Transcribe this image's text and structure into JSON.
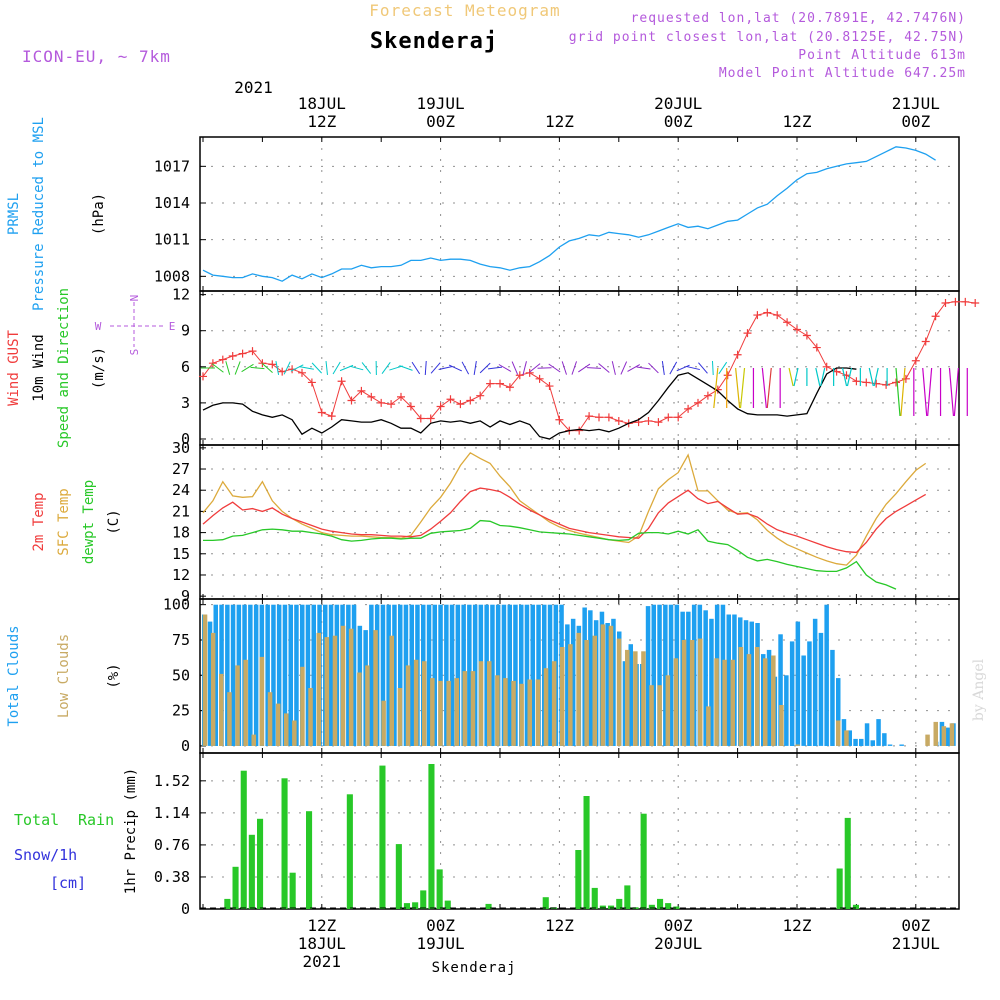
{
  "header": {
    "product": "Forecast Meteogram",
    "location": "Skenderaj",
    "model": "ICON-EU, ~ 7km",
    "requested": "requested lon,lat (20.7891E, 42.7476N)",
    "gridpoint": "grid point closest lon,lat (20.8125E, 42.75N)",
    "point_alt": "Point Altitude 613m",
    "model_alt": "Model Point Altitude 647.25m",
    "footer_location": "Skenderaj",
    "watermark": "by Angel"
  },
  "time_axis": {
    "top_year": "2021",
    "top_labels": [
      {
        "hour": 12,
        "lines": [
          "18JUL",
          "12Z"
        ]
      },
      {
        "hour": 24,
        "lines": [
          "19JUL",
          "00Z"
        ]
      },
      {
        "hour": 36,
        "lines": [
          "",
          "12Z"
        ]
      },
      {
        "hour": 48,
        "lines": [
          "20JUL",
          "00Z"
        ]
      },
      {
        "hour": 60,
        "lines": [
          "",
          "12Z"
        ]
      },
      {
        "hour": 72,
        "lines": [
          "21JUL",
          "00Z"
        ]
      }
    ],
    "bottom_labels": [
      {
        "hour": 12,
        "lines": [
          "12Z",
          "18JUL",
          "2021"
        ]
      },
      {
        "hour": 24,
        "lines": [
          "00Z",
          "19JUL"
        ]
      },
      {
        "hour": 36,
        "lines": [
          "12Z"
        ]
      },
      {
        "hour": 48,
        "lines": [
          "00Z",
          "20JUL"
        ]
      },
      {
        "hour": 60,
        "lines": [
          "12Z"
        ]
      },
      {
        "hour": 72,
        "lines": [
          "00Z",
          "21JUL"
        ]
      }
    ]
  },
  "colors": {
    "pressure": "#1ea0f0",
    "gust": "#f03c3c",
    "wind": "#000000",
    "wind_label_green": "#28c828",
    "temp2m": "#f03c3c",
    "sfc": "#dcaa3c",
    "dewpt": "#28c828",
    "total_cloud": "#1ea0f0",
    "low_cloud": "#c8aa64",
    "rain": "#28c828",
    "snow": "#3232dc",
    "label_purple": "#b45adc"
  },
  "panels": {
    "pressure": {
      "labels": [
        "PRMSL",
        "Pressure Reduced to MSL"
      ],
      "unit": "(hPa)",
      "ticks": [
        "1008",
        "1011",
        "1014",
        "1017"
      ]
    },
    "wind": {
      "labels": [
        "Wind GUST",
        "10m Wind",
        "Speed and Direction"
      ],
      "unit": "(m/s)",
      "ticks": [
        "0",
        "3",
        "6",
        "9",
        "12"
      ],
      "compass": {
        "n": "N",
        "s": "S",
        "w": "W",
        "e": "E"
      }
    },
    "temp": {
      "labels": [
        "2m Temp",
        "SFC Temp",
        "dewpt Temp"
      ],
      "unit": "(C)",
      "ticks": [
        "9",
        "12",
        "15",
        "18",
        "21",
        "24",
        "27",
        "30"
      ]
    },
    "cloud": {
      "labels": [
        "Total Clouds",
        "Low Clouds"
      ],
      "unit": "(%)",
      "ticks": [
        "0",
        "25",
        "50",
        "75",
        "100"
      ]
    },
    "precip": {
      "labels": [
        "Total",
        "Rain",
        "Snow/1h",
        "[cm]"
      ],
      "unit": "1hr Precip (mm)",
      "ticks": [
        "0",
        "0.38",
        "0.76",
        "1.14",
        "1.52"
      ]
    }
  },
  "chart_data": [
    {
      "type": "line",
      "title": "PRMSL Pressure Reduced to MSL",
      "ylabel": "hPa",
      "ylim": [
        1006.8,
        1019.4
      ],
      "x_hours_start": 0,
      "x_step": 1,
      "series": [
        {
          "name": "PRMSL",
          "values": [
            1008.5,
            1008.1,
            1008.0,
            1007.9,
            1007.9,
            1008.2,
            1008.0,
            1007.9,
            1007.6,
            1008.1,
            1007.8,
            1008.2,
            1007.9,
            1008.2,
            1008.6,
            1008.6,
            1008.9,
            1008.7,
            1008.8,
            1008.8,
            1008.9,
            1009.3,
            1009.3,
            1009.5,
            1009.3,
            1009.4,
            1009.4,
            1009.3,
            1009.0,
            1008.8,
            1008.7,
            1008.5,
            1008.7,
            1008.8,
            1009.2,
            1009.7,
            1010.4,
            1010.9,
            1011.1,
            1011.4,
            1011.3,
            1011.6,
            1011.5,
            1011.4,
            1011.2,
            1011.4,
            1011.7,
            1012.0,
            1012.3,
            1012.0,
            1012.1,
            1011.9,
            1012.2,
            1012.5,
            1012.6,
            1013.1,
            1013.6,
            1013.9,
            1014.6,
            1015.2,
            1015.9,
            1016.4,
            1016.5,
            1016.8,
            1017.0,
            1017.2,
            1017.3,
            1017.4,
            1017.8,
            1018.2,
            1018.6,
            1018.5,
            1018.3,
            1018.0,
            1017.5
          ]
        }
      ]
    },
    {
      "type": "line",
      "title": "Wind GUST / 10m Wind Speed and Direction",
      "ylabel": "m/s",
      "ylim": [
        -0.5,
        12.3
      ],
      "x_hours_start": 0,
      "x_step": 1,
      "series": [
        {
          "name": "Wind GUST",
          "values": [
            5.2,
            6.3,
            6.6,
            6.9,
            7.1,
            7.3,
            6.3,
            6.2,
            5.6,
            5.8,
            5.5,
            4.7,
            2.2,
            1.9,
            4.8,
            3.2,
            4.0,
            3.5,
            3.0,
            2.9,
            3.5,
            2.7,
            1.7,
            1.7,
            2.7,
            3.3,
            2.9,
            3.2,
            3.6,
            4.6,
            4.6,
            4.3,
            5.3,
            5.5,
            5.0,
            4.4,
            1.6,
            0.7,
            0.7,
            1.9,
            1.8,
            1.8,
            1.5,
            1.3,
            1.4,
            1.5,
            1.4,
            1.8,
            1.8,
            2.5,
            3.0,
            3.6,
            4.1,
            5.3,
            7.0,
            8.8,
            10.3,
            10.5,
            10.3,
            9.7,
            9.1,
            8.6,
            7.6,
            6.0,
            5.6,
            5.3,
            4.8,
            4.7,
            4.6,
            4.5,
            4.7,
            5.0,
            6.5,
            8.1,
            10.2,
            11.3,
            11.4,
            11.4,
            11.3
          ]
        },
        {
          "name": "10m Wind",
          "values": [
            2.4,
            2.8,
            3.0,
            3.0,
            2.9,
            2.3,
            2.0,
            1.8,
            2.0,
            1.6,
            0.4,
            0.9,
            0.5,
            1.0,
            1.6,
            1.5,
            1.4,
            1.4,
            1.6,
            1.3,
            0.9,
            0.9,
            0.5,
            1.3,
            1.5,
            1.4,
            1.5,
            1.3,
            1.5,
            1.0,
            1.5,
            1.2,
            1.5,
            1.2,
            0.2,
            0.0,
            0.5,
            0.7,
            0.8,
            0.7,
            0.8,
            0.6,
            0.9,
            1.3,
            1.6,
            2.2,
            3.2,
            4.3,
            5.3,
            5.5,
            5.0,
            4.5,
            4.0,
            3.2,
            2.5,
            2.1,
            2.0,
            2.0,
            2.0,
            1.9,
            2.0,
            2.1,
            3.8,
            5.4,
            5.9,
            5.9,
            5.8
          ]
        }
      ]
    },
    {
      "type": "line",
      "title": "2m Temp / SFC Temp / dewpt Temp",
      "ylabel": "C",
      "ylim": [
        8.6,
        30.4
      ],
      "x_hours_start": 0,
      "x_step": 1,
      "series": [
        {
          "name": "2m Temp",
          "values": [
            19.2,
            20.4,
            21.5,
            22.3,
            21.2,
            21.4,
            21.0,
            21.5,
            20.6,
            20.0,
            19.5,
            19.0,
            18.5,
            18.2,
            18.0,
            17.8,
            17.7,
            17.7,
            17.6,
            17.5,
            17.5,
            17.4,
            17.6,
            18.5,
            19.6,
            20.8,
            22.4,
            23.8,
            24.3,
            24.1,
            23.8,
            23.0,
            22.0,
            21.2,
            20.5,
            19.8,
            19.2,
            18.6,
            18.3,
            18.0,
            17.8,
            17.6,
            17.4,
            17.3,
            17.2,
            18.6,
            20.8,
            22.2,
            23.1,
            24.0,
            22.8,
            22.1,
            22.4,
            21.5,
            20.6,
            20.7,
            20.2,
            19.2,
            18.4,
            17.9,
            17.5,
            17.0,
            16.5,
            16.0,
            15.6,
            15.3,
            15.2,
            16.6,
            18.5,
            20.0,
            21.0,
            21.8,
            22.6,
            23.4
          ]
        },
        {
          "name": "SFC Temp",
          "values": [
            20.8,
            22.5,
            25.2,
            23.2,
            23.0,
            23.1,
            25.2,
            22.5,
            21.0,
            20.0,
            19.2,
            18.6,
            18.0,
            17.7,
            17.6,
            17.5,
            17.5,
            17.4,
            17.3,
            17.3,
            17.2,
            17.6,
            19.5,
            21.5,
            23.0,
            25.0,
            27.5,
            29.3,
            28.5,
            27.8,
            26.0,
            24.5,
            22.5,
            21.5,
            20.5,
            19.5,
            18.8,
            18.3,
            17.9,
            17.6,
            17.3,
            17.0,
            16.8,
            16.6,
            17.5,
            21.0,
            24.2,
            25.5,
            26.5,
            29.0,
            23.9,
            23.9,
            22.5,
            21.2,
            20.7,
            20.8,
            19.8,
            18.3,
            17.2,
            16.3,
            15.7,
            15.1,
            14.5,
            14.0,
            13.6,
            13.4,
            14.8,
            17.5,
            20.0,
            22.0,
            23.5,
            25.2,
            26.8,
            27.8
          ]
        },
        {
          "name": "dewpt Temp",
          "values": [
            16.9,
            16.9,
            17.0,
            17.5,
            17.6,
            18.0,
            18.4,
            18.5,
            18.4,
            18.2,
            18.2,
            18.0,
            17.8,
            17.5,
            17.0,
            16.8,
            16.9,
            17.1,
            17.2,
            17.2,
            17.1,
            17.2,
            17.2,
            17.9,
            18.1,
            18.2,
            18.3,
            18.6,
            19.7,
            19.6,
            19.0,
            18.9,
            18.7,
            18.4,
            18.1,
            18.0,
            17.9,
            17.8,
            17.6,
            17.4,
            17.2,
            17.0,
            16.9,
            17.0,
            17.9,
            18.0,
            18.0,
            17.8,
            18.2,
            17.8,
            18.4,
            16.8,
            16.5,
            16.3,
            15.5,
            14.5,
            14.0,
            14.2,
            13.9,
            13.5,
            13.2,
            12.9,
            12.6,
            12.5,
            12.5,
            13.0,
            13.9,
            12.0,
            11.0,
            10.6,
            10.0
          ]
        }
      ]
    },
    {
      "type": "bar",
      "title": "Total Clouds / Low Clouds",
      "ylabel": "%",
      "ylim": [
        -5,
        104
      ],
      "x_hours_start": 0,
      "x_step": 1,
      "series": [
        {
          "name": "Total Clouds",
          "values": [
            93,
            88,
            100,
            100,
            100,
            100,
            100,
            100,
            100,
            100,
            100,
            100,
            100,
            100,
            100,
            100,
            100,
            100,
            100,
            100,
            100,
            100,
            100,
            100,
            100,
            100,
            100,
            85,
            82,
            100,
            100,
            100,
            100,
            100,
            100,
            100,
            100,
            100,
            100,
            100,
            100,
            100,
            100,
            100,
            100,
            100,
            100,
            100,
            100,
            100,
            100,
            100,
            100,
            100,
            100,
            100,
            100,
            100,
            100,
            100,
            100,
            100,
            100,
            86,
            90,
            85,
            98,
            96,
            89,
            95,
            87,
            90,
            81,
            60,
            72,
            58,
            58,
            99,
            100,
            100,
            100,
            100,
            100,
            95,
            95,
            100,
            100,
            96,
            90,
            100,
            100,
            93,
            93,
            91,
            89,
            88,
            87,
            65,
            68,
            49,
            79,
            50,
            74,
            88,
            64,
            74,
            90,
            80,
            100,
            68,
            48,
            19,
            11,
            5,
            5,
            16,
            4,
            19,
            9,
            1,
            0,
            1,
            0,
            0,
            0,
            0,
            0,
            3,
            17,
            13,
            16
          ]
        },
        {
          "name": "Low Clouds",
          "values": [
            93,
            80,
            51,
            38,
            57,
            61,
            8,
            63,
            38,
            30,
            23,
            18,
            56,
            41,
            80,
            77,
            78,
            85,
            83,
            52,
            57,
            82,
            32,
            78,
            41,
            57,
            61,
            60,
            48,
            46,
            46,
            48,
            53,
            53,
            60,
            60,
            50,
            48,
            46,
            44,
            47,
            47,
            55,
            60,
            70,
            72,
            80,
            75,
            78,
            86,
            85,
            76,
            68,
            67,
            67,
            43,
            43,
            50,
            62,
            75,
            75,
            76,
            28,
            62,
            61,
            61,
            70,
            65,
            70,
            62,
            64,
            29,
            0,
            1,
            0,
            0,
            0,
            0,
            18,
            11,
            0,
            0,
            0,
            0,
            0,
            0,
            0,
            0,
            0,
            8,
            17,
            14,
            16
          ]
        }
      ]
    },
    {
      "type": "bar",
      "title": "1hr Precip",
      "ylabel": "mm",
      "ylim": [
        0,
        1.85
      ],
      "x_hours_start": 0,
      "x_step": 1,
      "series": [
        {
          "name": "Total Rain",
          "values": [
            0,
            0,
            0.12,
            0.5,
            1.64,
            0.88,
            1.07,
            0,
            0,
            1.55,
            0.43,
            0,
            1.16,
            0,
            0,
            0,
            0,
            1.36,
            0,
            0,
            0,
            1.7,
            0,
            0.77,
            0.07,
            0.08,
            0.22,
            1.72,
            0.47,
            0.1,
            0,
            0,
            0,
            0,
            0.06,
            0,
            0,
            0,
            0,
            0,
            0,
            0.14,
            0.02,
            0,
            0,
            0.7,
            1.34,
            0.25,
            0.04,
            0.04,
            0.12,
            0.28,
            0.02,
            1.13,
            0.05,
            0.12,
            0.07,
            0.03,
            0,
            0,
            0,
            0,
            0,
            0,
            0,
            0,
            0,
            0,
            0,
            0,
            0,
            0,
            0,
            0,
            0,
            0,
            0,
            0.48,
            1.08,
            0.05,
            0,
            0,
            0,
            0,
            0,
            0,
            0,
            0,
            0,
            0,
            0,
            0
          ]
        }
      ]
    }
  ]
}
